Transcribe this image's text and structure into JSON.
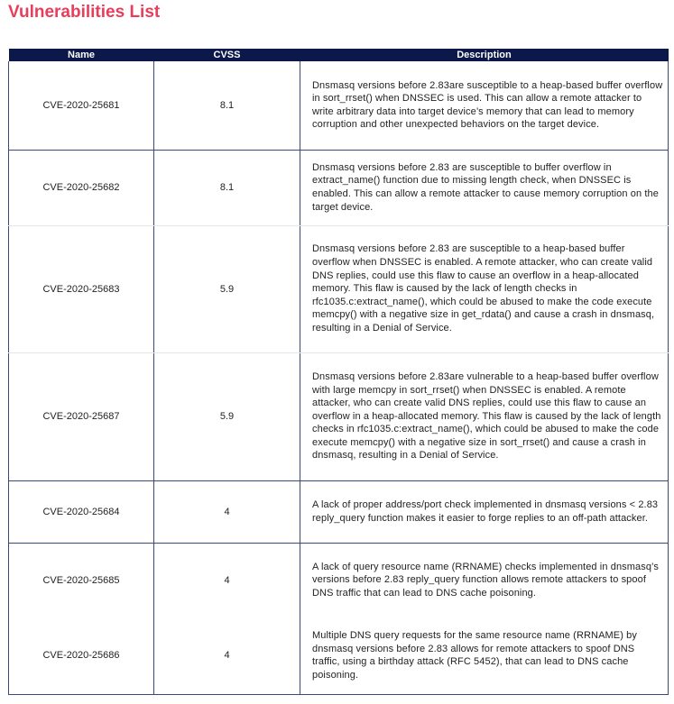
{
  "page": {
    "title": "Vulnerabilities List"
  },
  "table": {
    "headers": [
      "Name",
      "CVSS",
      "Description"
    ],
    "rows": [
      {
        "name": "CVE-2020-25681",
        "cvss": "8.1",
        "description": "Dnsmasq versions before 2.83are susceptible to a heap-based buffer overflow in sort_rrset() when DNSSEC is used. This can allow a remote attacker to write arbitrary data into target device’s memory that can lead to memory corruption and other unexpected behaviors on the target device."
      },
      {
        "name": "CVE-2020-25682",
        "cvss": "8.1",
        "description": "Dnsmasq versions before 2.83 are susceptible to buffer overflow in extract_name() function due to missing length check, when DNSSEC is enabled. This can allow a remote attacker to cause memory corruption on the target device."
      },
      {
        "name": "CVE-2020-25683",
        "cvss": "5.9",
        "description": "Dnsmasq versions before 2.83 are susceptible to a heap-based buffer overflow when DNSSEC is enabled. A remote attacker, who can create valid DNS replies, could use this flaw to cause an overflow in a heap-allocated memory. This flaw is caused by the lack of length checks in rfc1035.c:extract_name(), which could be abused to make the code execute memcpy() with a negative size in get_rdata() and cause a crash in dnsmasq, resulting in a Denial of Service."
      },
      {
        "name": "CVE-2020-25687",
        "cvss": "5.9",
        "description": "Dnsmasq versions before 2.83are vulnerable to a heap-based buffer overflow with large memcpy in sort_rrset() when DNSSEC is enabled. A remote attacker, who can create valid DNS replies, could use this flaw to cause an overflow in a heap-allocated memory. This flaw is caused by the lack of length checks in rfc1035.c:extract_name(), which could be abused to make the code execute memcpy() with a negative size in sort_rrset() and cause a crash in dnsmasq, resulting in a Denial of Service."
      },
      {
        "name": "CVE-2020-25684",
        "cvss": "4",
        "description": "A lack of proper address/port check implemented in dnsmasq versions < 2.83 reply_query function makes it easier to forge replies to an off-path attacker."
      },
      {
        "name": "CVE-2020-25685",
        "cvss": "4",
        "description": "A lack of query resource name (RRNAME) checks implemented in dnsmasq’s versions before 2.83 reply_query function allows remote attackers to spoof DNS traffic that can lead to DNS cache poisoning."
      },
      {
        "name": "CVE-2020-25686",
        "cvss": "4",
        "description": "Multiple DNS query requests for the same resource name (RRNAME) by dnsmasq versions before 2.83 allows for remote attackers to spoof DNS traffic, using a birthday attack (RFC 5452), that can lead to DNS cache poisoning."
      }
    ]
  },
  "colors": {
    "title": "#e83e5c",
    "header_bg": "#0b1849"
  }
}
